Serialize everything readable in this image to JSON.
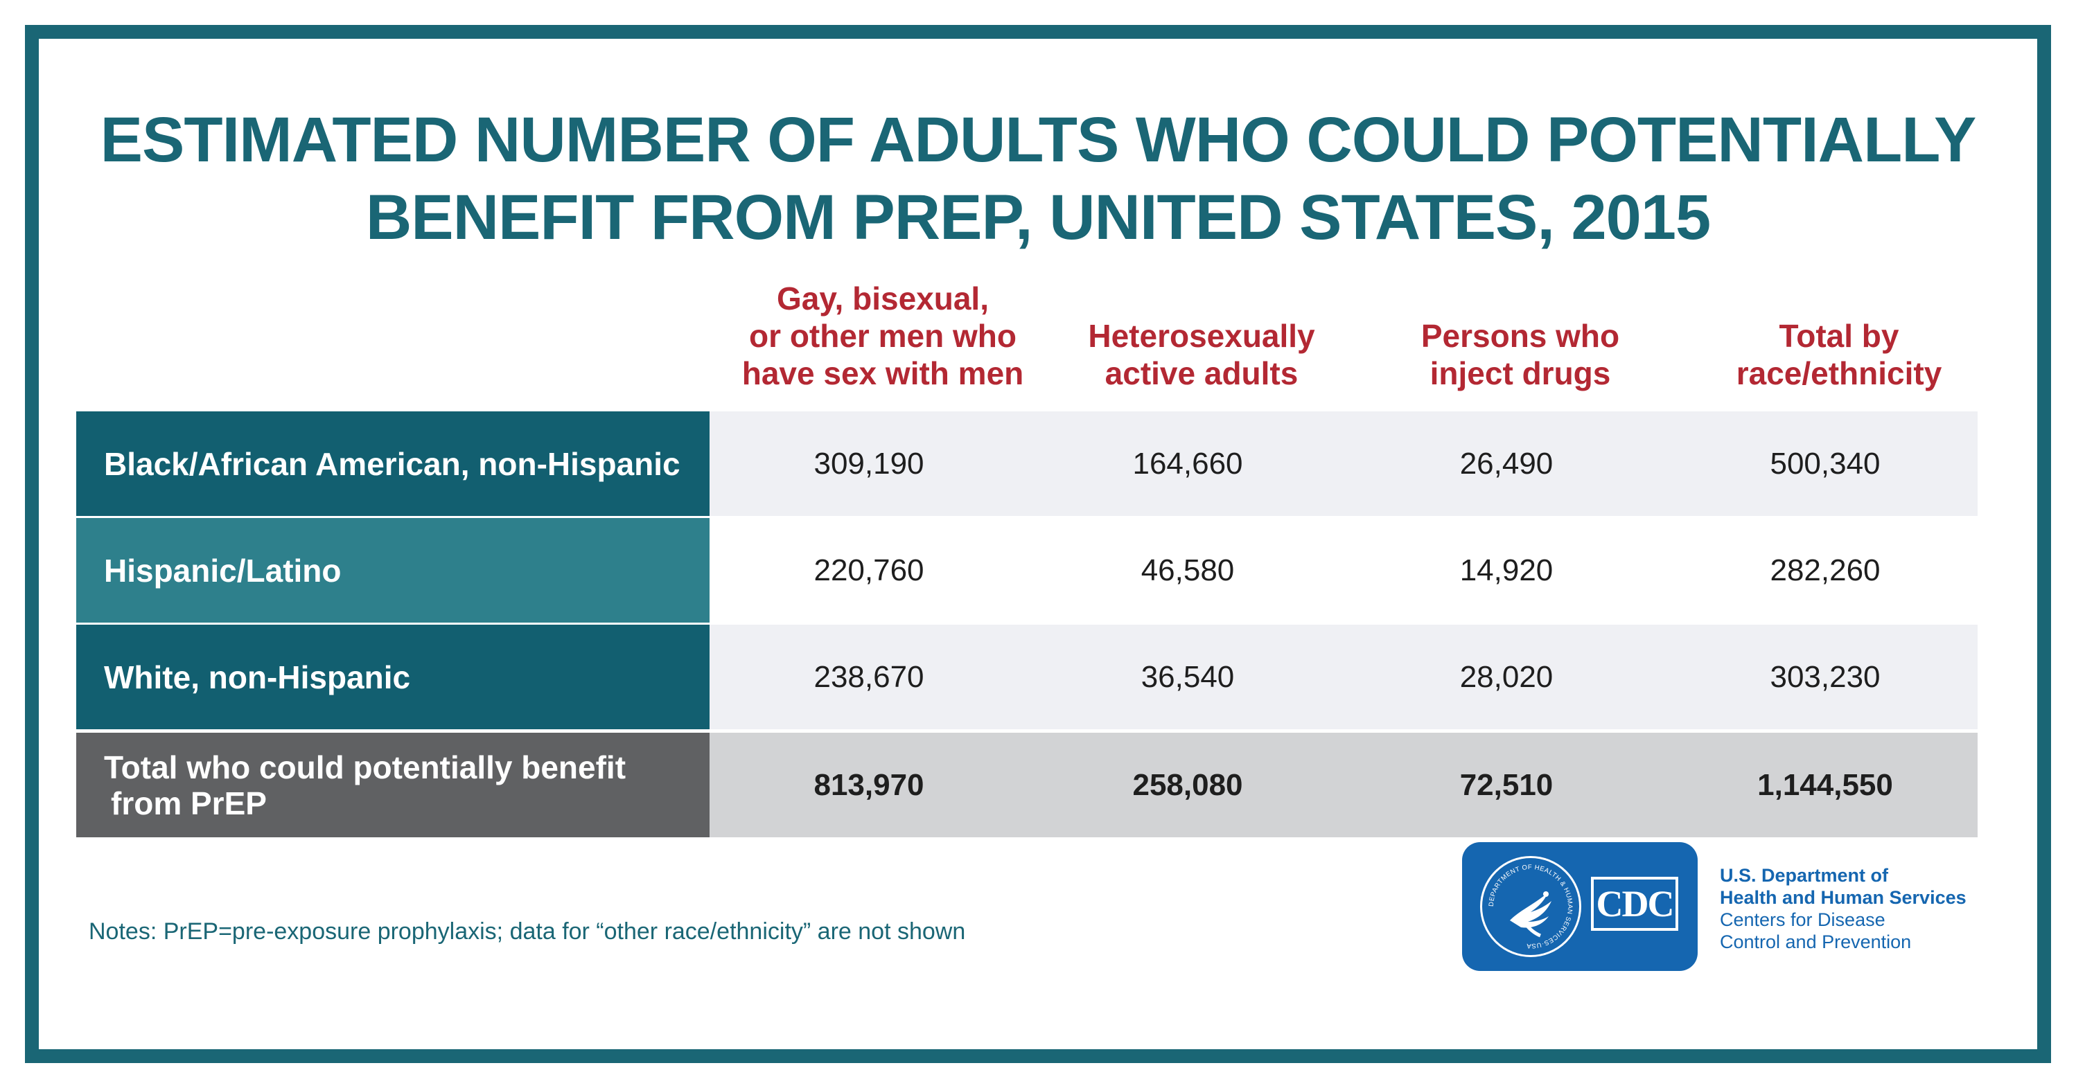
{
  "title": {
    "line1": "ESTIMATED NUMBER OF ADULTS WHO COULD POTENTIALLY",
    "line2": "BENEFIT FROM PREP, UNITED STATES, 2015"
  },
  "columns": [
    {
      "lines": [
        "Gay, bisexual,",
        "or other men who",
        "have sex with men"
      ]
    },
    {
      "lines": [
        "Heterosexually",
        "active adults"
      ]
    },
    {
      "lines": [
        "Persons who",
        "inject drugs"
      ]
    },
    {
      "lines": [
        "Total by",
        "race/ethnicity"
      ]
    }
  ],
  "rows": [
    {
      "label": "Black/African American, non-Hispanic",
      "values": [
        "309,190",
        "164,660",
        "26,490",
        "500,340"
      ]
    },
    {
      "label": "Hispanic/Latino",
      "values": [
        "220,760",
        "46,580",
        "14,920",
        "282,260"
      ]
    },
    {
      "label": "White, non-Hispanic",
      "values": [
        "238,670",
        "36,540",
        "28,020",
        "303,230"
      ]
    }
  ],
  "total_row": {
    "label_line1": "Total who could potentially benefit",
    "label_line2": "from PrEP",
    "values": [
      "813,970",
      "258,080",
      "72,510",
      "1,144,550"
    ]
  },
  "notes": "Notes: PrEP=pre-exposure prophylaxis; data for “other race/ethnicity” are not shown",
  "logo": {
    "cdc_text": "CDC",
    "seal_text": "DEPARTMENT OF HEALTH & HUMAN SERVICES·USA",
    "org_line1": "U.S. Department of",
    "org_line2": "Health and Human Services",
    "org_line3": "Centers for Disease",
    "org_line4": "Control and Prevention"
  },
  "colors": {
    "frame": "#1a6675",
    "header_text": "#b32833",
    "row_label_dark": "#125f70",
    "row_label_light": "#2e808c",
    "total_label": "#606163",
    "cells_light": "#eff0f4",
    "cells_white": "#ffffff",
    "cells_total": "#d2d3d5",
    "logo_blue": "#1566b0"
  },
  "chart_data": {
    "type": "table",
    "title": "ESTIMATED NUMBER OF ADULTS WHO COULD POTENTIALLY BENEFIT FROM PREP, UNITED STATES, 2015",
    "columns": [
      "Gay, bisexual, or other men who have sex with men",
      "Heterosexually active adults",
      "Persons who inject drugs",
      "Total by race/ethnicity"
    ],
    "rows": [
      {
        "name": "Black/African American, non-Hispanic",
        "values": [
          309190,
          164660,
          26490,
          500340
        ]
      },
      {
        "name": "Hispanic/Latino",
        "values": [
          220760,
          46580,
          14920,
          282260
        ]
      },
      {
        "name": "White, non-Hispanic",
        "values": [
          238670,
          36540,
          28020,
          303230
        ]
      },
      {
        "name": "Total who could potentially benefit from PrEP",
        "values": [
          813970,
          258080,
          72510,
          1144550
        ]
      }
    ]
  }
}
